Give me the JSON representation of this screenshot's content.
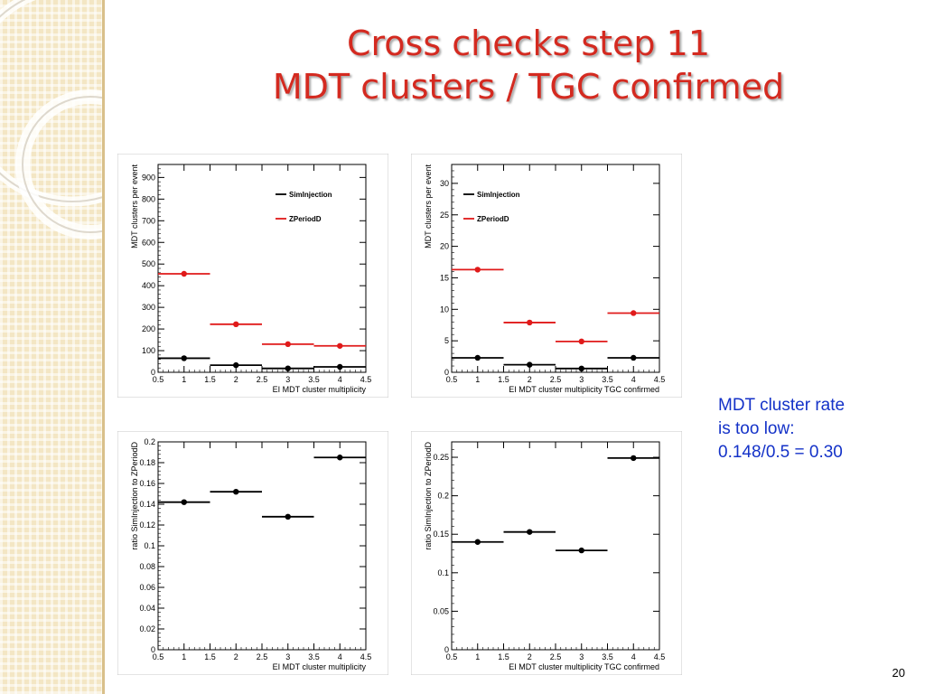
{
  "slide": {
    "title_line1": "Cross checks step 11",
    "title_line2": "MDT clusters / TGC confirmed",
    "note_lines": [
      "MDT cluster rate",
      "is too low:",
      "0.148/0.5 = 0.30"
    ],
    "page_number": "20",
    "colors": {
      "title": "#d42a20",
      "note": "#1432c8",
      "series_sim": "#000000",
      "series_z": "#e01a1a",
      "side_panel": "#f3e6c4"
    }
  },
  "chart_data": [
    {
      "type": "scatter",
      "xlabel": "EI MDT cluster multiplicity",
      "ylabel": "MDT clusters per event",
      "xlim": [
        0.5,
        4.5
      ],
      "ylim": [
        0,
        960
      ],
      "xticks": [
        "0.5",
        "1",
        "1.5",
        "2",
        "2.5",
        "3",
        "3.5",
        "4",
        "4.5"
      ],
      "yticks": [
        "0",
        "100",
        "200",
        "300",
        "400",
        "500",
        "600",
        "700",
        "800",
        "900"
      ],
      "x": [
        1,
        2,
        3,
        4
      ],
      "legend_position": "top-right",
      "series": [
        {
          "name": "SimInjection",
          "color": "#000000",
          "values": [
            65,
            33,
            18,
            25
          ]
        },
        {
          "name": "ZPeriodD",
          "color": "#e01a1a",
          "values": [
            455,
            222,
            130,
            122
          ]
        }
      ]
    },
    {
      "type": "scatter",
      "xlabel": "EI MDT cluster multiplicity TGC confirmed",
      "ylabel": "MDT clusters per event",
      "xlim": [
        0.5,
        4.5
      ],
      "ylim": [
        0,
        33
      ],
      "xticks": [
        "0.5",
        "1",
        "1.5",
        "2",
        "2.5",
        "3",
        "3.5",
        "4",
        "4.5"
      ],
      "yticks": [
        "0",
        "5",
        "10",
        "15",
        "20",
        "25",
        "30"
      ],
      "x": [
        1,
        2,
        3,
        4
      ],
      "legend_position": "top-left",
      "series": [
        {
          "name": "SimInjection",
          "color": "#000000",
          "values": [
            2.3,
            1.2,
            0.6,
            2.3
          ]
        },
        {
          "name": "ZPeriodD",
          "color": "#e01a1a",
          "values": [
            16.3,
            7.9,
            4.9,
            9.4
          ]
        }
      ]
    },
    {
      "type": "scatter",
      "xlabel": "EI MDT cluster multiplicity",
      "ylabel": "ratio SimInjection to ZPeriodD",
      "xlim": [
        0.5,
        4.5
      ],
      "ylim": [
        0,
        0.2
      ],
      "xticks": [
        "0.5",
        "1",
        "1.5",
        "2",
        "2.5",
        "3",
        "3.5",
        "4",
        "4.5"
      ],
      "yticks": [
        "0",
        "0.02",
        "0.04",
        "0.06",
        "0.08",
        "0.1",
        "0.12",
        "0.14",
        "0.16",
        "0.18",
        "0.2"
      ],
      "x": [
        1,
        2,
        3,
        4
      ],
      "series": [
        {
          "color": "#000000",
          "values": [
            0.142,
            0.152,
            0.128,
            0.185
          ]
        }
      ]
    },
    {
      "type": "scatter",
      "xlabel": "EI MDT cluster multiplicity TGC confirmed",
      "ylabel": "ratio SimInjection to ZPeriodD",
      "xlim": [
        0.5,
        4.5
      ],
      "ylim": [
        0,
        0.27
      ],
      "xticks": [
        "0.5",
        "1",
        "1.5",
        "2",
        "2.5",
        "3",
        "3.5",
        "4",
        "4.5"
      ],
      "yticks": [
        "0",
        "0.05",
        "0.1",
        "0.15",
        "0.2",
        "0.25"
      ],
      "x": [
        1,
        2,
        3,
        4
      ],
      "series": [
        {
          "color": "#000000",
          "values": [
            0.14,
            0.153,
            0.129,
            0.249
          ]
        }
      ]
    }
  ]
}
